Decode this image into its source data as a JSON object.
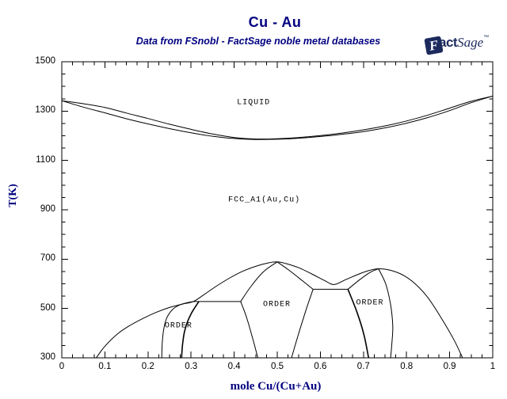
{
  "header": {
    "title": "Cu - Au",
    "subtitle": "Data from FSnobl - FactSage noble metal databases"
  },
  "logo": {
    "f": "F",
    "act": "act",
    "sage": "Sage",
    "tm": "™"
  },
  "colors": {
    "heading": "#000080",
    "logo_navy": "#1c2a5e",
    "curve": "#000000",
    "tick_text": "#000000"
  },
  "chart_data": {
    "type": "line",
    "title": "Cu - Au",
    "subtitle": "Data from FSnobl - FactSage noble metal databases",
    "xlabel": "mole Cu/(Cu+Au)",
    "ylabel": "T(K)",
    "xlim": [
      0,
      1
    ],
    "ylim": [
      300,
      1500
    ],
    "grid": false,
    "frame": true,
    "x_major_ticks": [
      0,
      0.1,
      0.2,
      0.3,
      0.4,
      0.5,
      0.6,
      0.7,
      0.8,
      0.9,
      1
    ],
    "x_tick_labels": [
      "0",
      "0.1",
      "0.2",
      "0.3",
      "0.4",
      "0.5",
      "0.6",
      "0.7",
      "0.8",
      "0.9",
      "1"
    ],
    "x_minor_step": 0.025,
    "y_major_ticks": [
      300,
      500,
      700,
      900,
      1100,
      1300,
      1500
    ],
    "y_tick_labels": [
      "300",
      "500",
      "700",
      "900",
      "1100",
      "1300",
      "1500"
    ],
    "y_minor_step": 50,
    "phase_labels": [
      {
        "text": "LIQUID",
        "x": 0.445,
        "T": 1333
      },
      {
        "text": "FCC_A1(Au,Cu)",
        "x": 0.47,
        "T": 938
      },
      {
        "text": "ORDER",
        "x": 0.271,
        "T": 428
      },
      {
        "text": "ORDER",
        "x": 0.499,
        "T": 515
      },
      {
        "text": "ORDER",
        "x": 0.715,
        "T": 521
      }
    ],
    "curves": [
      {
        "name": "liquidus",
        "width": 1,
        "points": [
          [
            0,
            1342
          ],
          [
            0.05,
            1330
          ],
          [
            0.1,
            1315
          ],
          [
            0.15,
            1292
          ],
          [
            0.2,
            1270
          ],
          [
            0.25,
            1247
          ],
          [
            0.3,
            1226
          ],
          [
            0.35,
            1207
          ],
          [
            0.4,
            1193
          ],
          [
            0.45,
            1187
          ],
          [
            0.5,
            1188
          ],
          [
            0.55,
            1193
          ],
          [
            0.6,
            1201
          ],
          [
            0.65,
            1211
          ],
          [
            0.7,
            1224
          ],
          [
            0.75,
            1240
          ],
          [
            0.8,
            1260
          ],
          [
            0.85,
            1284
          ],
          [
            0.9,
            1312
          ],
          [
            0.95,
            1340
          ],
          [
            1,
            1361
          ]
        ]
      },
      {
        "name": "solidus",
        "width": 1,
        "points": [
          [
            0,
            1342
          ],
          [
            0.05,
            1316
          ],
          [
            0.1,
            1293
          ],
          [
            0.15,
            1269
          ],
          [
            0.2,
            1248
          ],
          [
            0.25,
            1229
          ],
          [
            0.3,
            1212
          ],
          [
            0.35,
            1198
          ],
          [
            0.4,
            1189
          ],
          [
            0.45,
            1185
          ],
          [
            0.5,
            1186
          ],
          [
            0.55,
            1190
          ],
          [
            0.6,
            1197
          ],
          [
            0.65,
            1206
          ],
          [
            0.7,
            1217
          ],
          [
            0.75,
            1232
          ],
          [
            0.8,
            1251
          ],
          [
            0.85,
            1274
          ],
          [
            0.9,
            1302
          ],
          [
            0.95,
            1334
          ],
          [
            1,
            1361
          ]
        ]
      },
      {
        "name": "order-envelope",
        "width": 1,
        "points": [
          [
            0.08,
            300
          ],
          [
            0.1,
            347
          ],
          [
            0.13,
            398
          ],
          [
            0.16,
            433
          ],
          [
            0.19,
            461
          ],
          [
            0.22,
            485
          ],
          [
            0.25,
            504
          ],
          [
            0.28,
            518
          ],
          [
            0.305,
            528
          ],
          [
            0.33,
            556
          ],
          [
            0.36,
            592
          ],
          [
            0.39,
            624
          ],
          [
            0.42,
            651
          ],
          [
            0.45,
            671
          ],
          [
            0.48,
            685
          ],
          [
            0.5,
            689
          ],
          [
            0.52,
            682
          ],
          [
            0.55,
            665
          ],
          [
            0.58,
            640
          ],
          [
            0.61,
            613
          ],
          [
            0.632,
            597
          ],
          [
            0.66,
            618
          ],
          [
            0.69,
            640
          ],
          [
            0.715,
            655
          ],
          [
            0.735,
            661
          ],
          [
            0.76,
            656
          ],
          [
            0.79,
            637
          ],
          [
            0.82,
            600
          ],
          [
            0.85,
            543
          ],
          [
            0.88,
            463
          ],
          [
            0.91,
            373
          ],
          [
            0.93,
            300
          ]
        ]
      },
      {
        "name": "cuau3-left-boundary",
        "width": 1,
        "points": [
          [
            0.232,
            300
          ],
          [
            0.233,
            360
          ],
          [
            0.237,
            420
          ],
          [
            0.244,
            463
          ],
          [
            0.256,
            494
          ],
          [
            0.272,
            513
          ],
          [
            0.29,
            523
          ],
          [
            0.305,
            528
          ]
        ]
      },
      {
        "name": "cuau3-right-boundary",
        "width": 1.6,
        "points": [
          [
            0.278,
            300
          ],
          [
            0.28,
            350
          ],
          [
            0.284,
            400
          ],
          [
            0.291,
            443
          ],
          [
            0.3,
            478
          ],
          [
            0.31,
            507
          ],
          [
            0.318,
            528
          ]
        ]
      },
      {
        "name": "eutectoid-530",
        "width": 1,
        "points": [
          [
            0.305,
            528
          ],
          [
            0.415,
            528
          ]
        ]
      },
      {
        "name": "cuau-left-upper",
        "width": 1,
        "points": [
          [
            0.415,
            528
          ],
          [
            0.44,
            592
          ],
          [
            0.47,
            652
          ],
          [
            0.5,
            689
          ]
        ]
      },
      {
        "name": "cuau-left-lower",
        "width": 1,
        "points": [
          [
            0.415,
            528
          ],
          [
            0.428,
            468
          ],
          [
            0.442,
            385
          ],
          [
            0.455,
            300
          ]
        ]
      },
      {
        "name": "cuau-right-upper",
        "width": 1,
        "points": [
          [
            0.5,
            689
          ],
          [
            0.525,
            658
          ],
          [
            0.553,
            620
          ],
          [
            0.583,
            578
          ]
        ]
      },
      {
        "name": "cuau-right-lower",
        "width": 1,
        "points": [
          [
            0.583,
            578
          ],
          [
            0.567,
            495
          ],
          [
            0.549,
            395
          ],
          [
            0.533,
            300
          ]
        ]
      },
      {
        "name": "eutectoid-578",
        "width": 1,
        "points": [
          [
            0.583,
            578
          ],
          [
            0.664,
            578
          ]
        ]
      },
      {
        "name": "cu3au-left-upper",
        "width": 1,
        "points": [
          [
            0.664,
            578
          ],
          [
            0.69,
            615
          ],
          [
            0.715,
            646
          ],
          [
            0.735,
            661
          ]
        ]
      },
      {
        "name": "cu3au-left-lower",
        "width": 1.6,
        "points": [
          [
            0.664,
            578
          ],
          [
            0.685,
            485
          ],
          [
            0.701,
            395
          ],
          [
            0.712,
            300
          ]
        ]
      },
      {
        "name": "cu3au-right-boundary",
        "width": 1,
        "points": [
          [
            0.735,
            661
          ],
          [
            0.752,
            598
          ],
          [
            0.763,
            515
          ],
          [
            0.768,
            430
          ],
          [
            0.766,
            360
          ],
          [
            0.763,
            300
          ]
        ]
      }
    ]
  }
}
